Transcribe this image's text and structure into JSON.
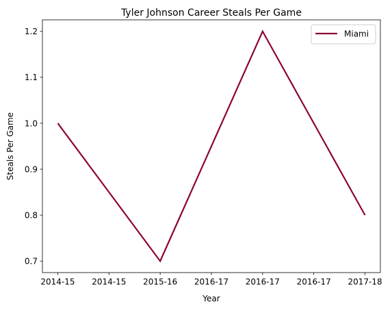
{
  "chart_data": {
    "type": "line",
    "title": "Tyler Johnson  Career Steals Per Game",
    "xlabel": "Year",
    "ylabel": "Steals Per Game",
    "x_tick_labels": [
      "2014-15",
      "2014-15",
      "2015-16",
      "2016-17",
      "2016-17",
      "2016-17",
      "2017-18"
    ],
    "y_tick_labels": [
      "0.7",
      "0.8",
      "0.9",
      "1.0",
      "1.1",
      "1.2"
    ],
    "y_ticks": [
      0.7,
      0.8,
      0.9,
      1.0,
      1.1,
      1.2
    ],
    "x": [
      0,
      1,
      2,
      3
    ],
    "ylim": [
      0.675,
      1.225
    ],
    "xlim": [
      -0.15,
      3.15
    ],
    "series": [
      {
        "name": "Miami",
        "color": "#8c0037",
        "values": [
          1.0,
          0.7,
          1.2,
          0.8
        ]
      }
    ],
    "legend_position": "upper right",
    "grid": false
  }
}
